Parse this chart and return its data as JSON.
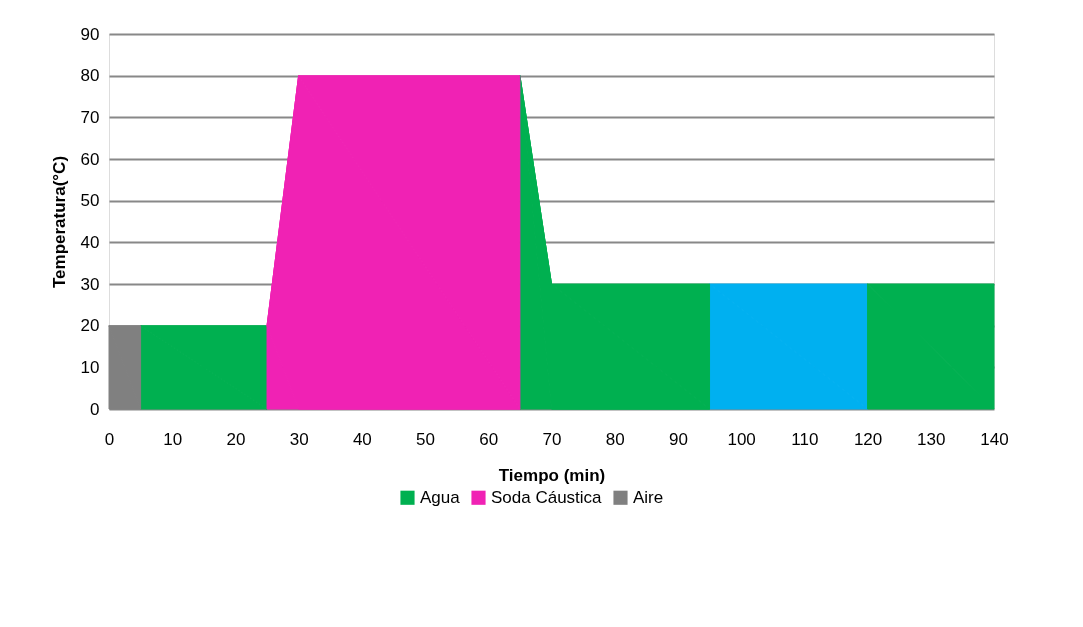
{
  "chart_data": {
    "type": "area",
    "xlabel": "Tiempo (min)",
    "ylabel": "Temperatura(°C)",
    "xlim": [
      0,
      140
    ],
    "xticks": [
      0,
      10,
      20,
      30,
      40,
      50,
      60,
      70,
      80,
      90,
      100,
      110,
      120,
      130,
      140
    ],
    "ylim": [
      0,
      90
    ],
    "yticks": [
      0,
      10,
      20,
      30,
      40,
      50,
      60,
      70,
      80,
      90
    ],
    "grid": "y",
    "legend": "bottom",
    "series": [
      {
        "color": "#00b0f0",
        "x": [
          95,
          120
        ],
        "values": [
          30,
          30
        ]
      },
      {
        "name": "Agua",
        "color": "#00b050",
        "x": [
          5,
          25
        ],
        "values": [
          20,
          20
        ]
      },
      {
        "color": "#00b050",
        "x": [
          65,
          70,
          95
        ],
        "values": [
          80,
          30,
          30
        ]
      },
      {
        "color": "#00b050",
        "x": [
          120,
          140
        ],
        "values": [
          30,
          30
        ]
      },
      {
        "name": "Soda Cáustica",
        "color": "#f022b4",
        "x": [
          25,
          30,
          65
        ],
        "values": [
          20,
          80,
          80
        ]
      },
      {
        "name": "Aire",
        "color": "#808080",
        "x": [
          0,
          5
        ],
        "values": [
          20,
          20
        ]
      }
    ]
  }
}
